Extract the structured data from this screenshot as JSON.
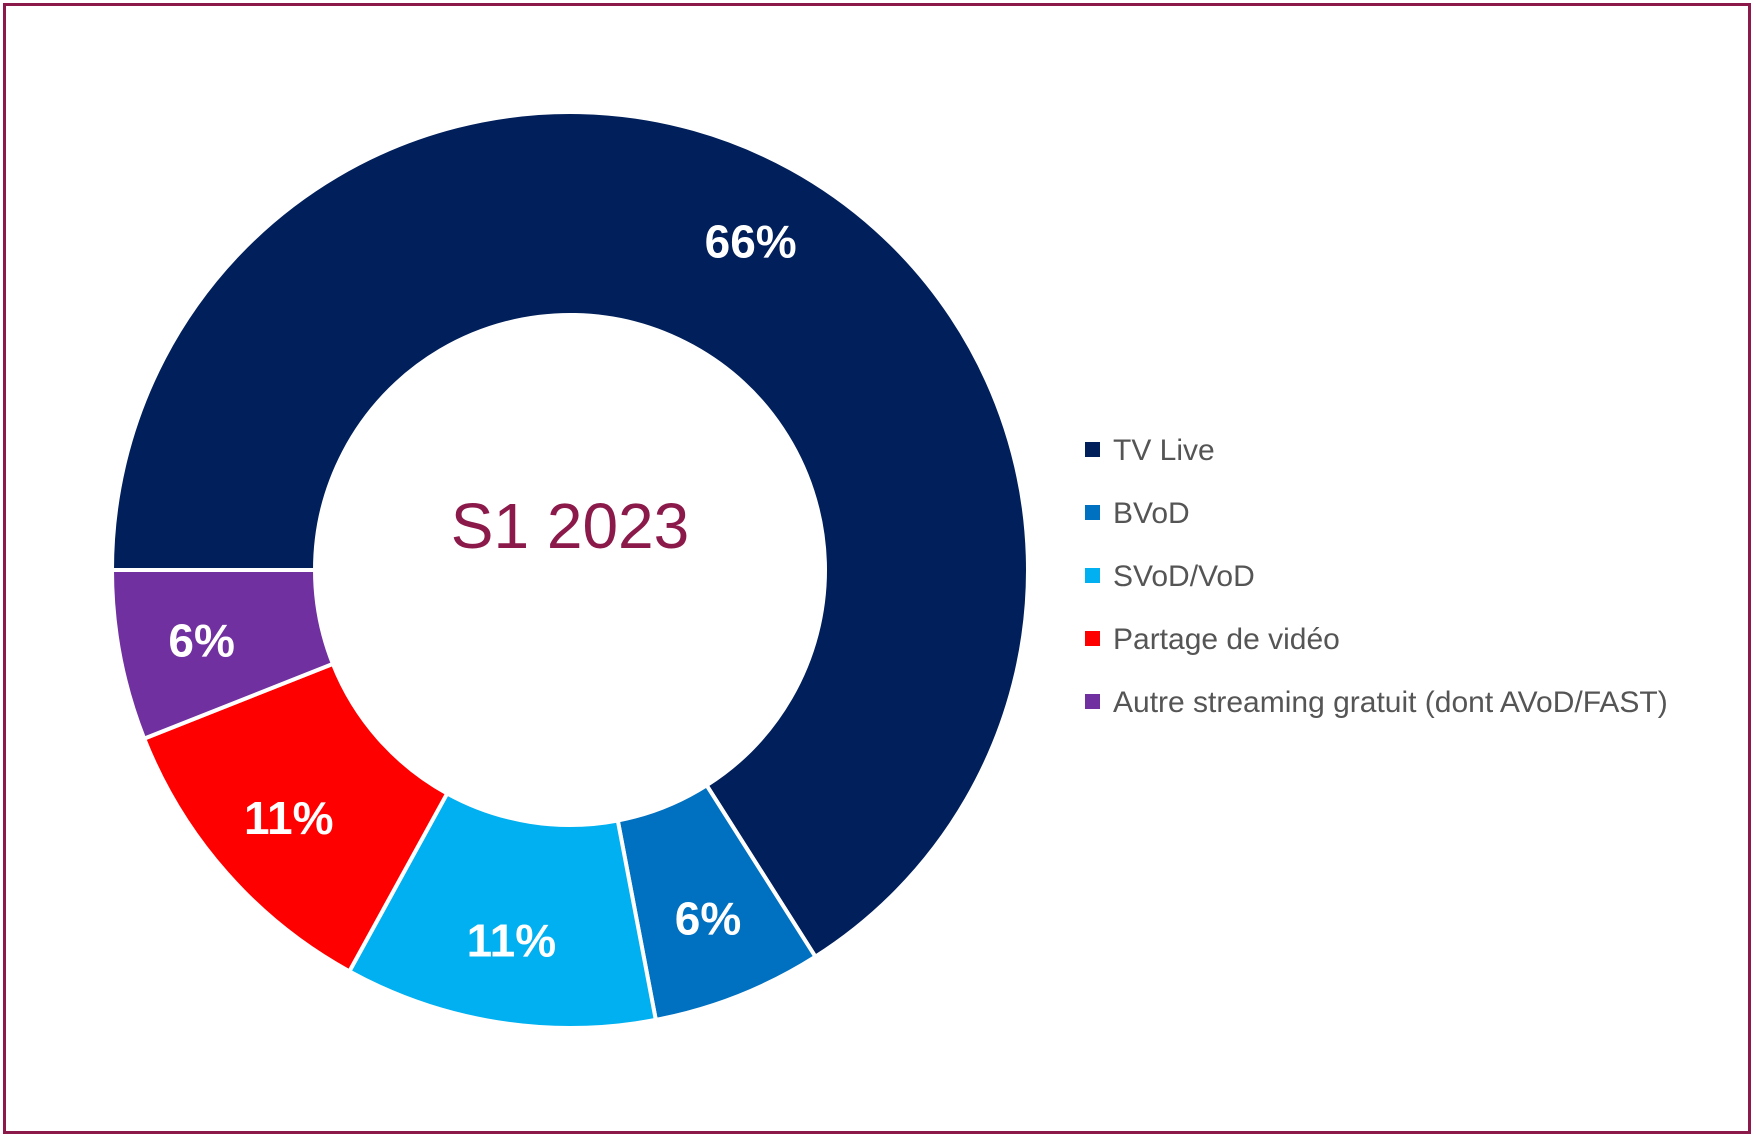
{
  "chart_data": {
    "type": "pie",
    "subtype": "donut",
    "center_label": "S1 2023",
    "categories": [
      "TV Live",
      "BVoD",
      "SVoD/VoD",
      "Partage de vidéo",
      "Autre streaming gratuit (dont AVoD/FAST)"
    ],
    "values": [
      66,
      6,
      11,
      11,
      6
    ],
    "value_labels": [
      "66%",
      "6%",
      "11%",
      "11%",
      "6%"
    ],
    "colors": [
      "#001f5b",
      "#0070c0",
      "#00b0f0",
      "#ff0000",
      "#7030a0"
    ],
    "legend_position": "right"
  },
  "center_color": "#8b1a4a",
  "frame_color": "#8b1a4a"
}
